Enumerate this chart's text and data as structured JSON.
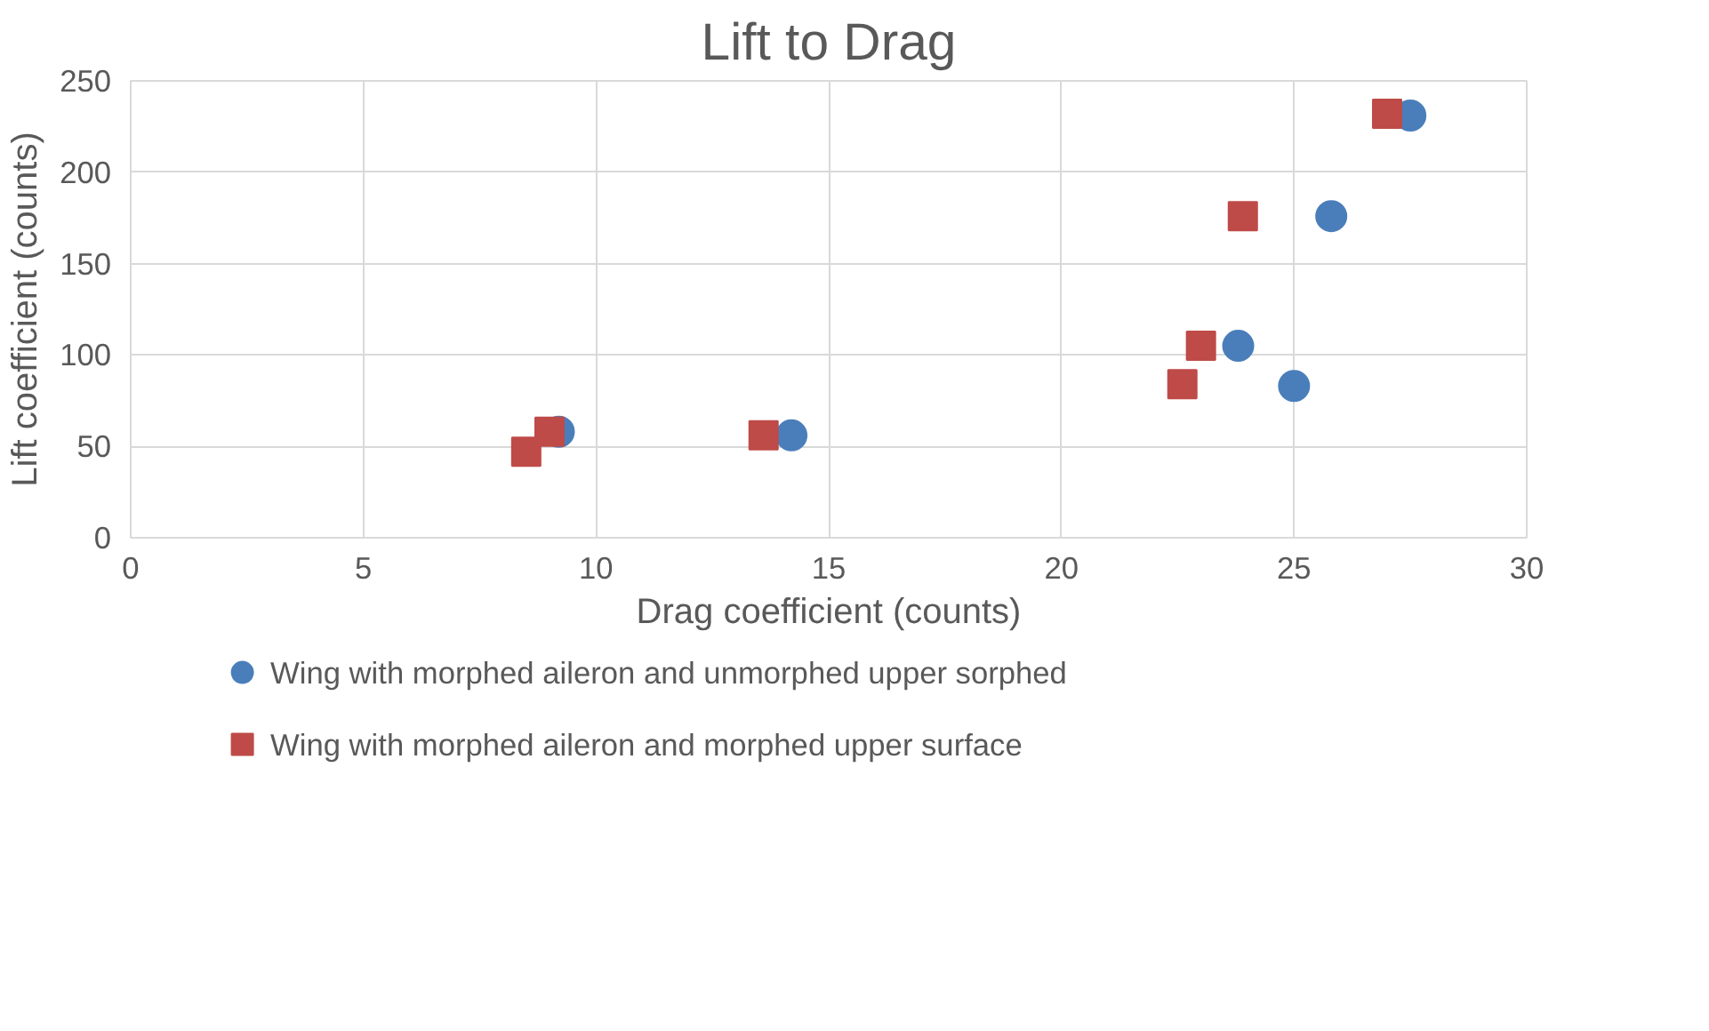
{
  "chart_data": {
    "type": "scatter",
    "title": "Lift to Drag",
    "xlabel": "Drag coefficient (counts)",
    "ylabel": "Lift coefficient (counts)",
    "xlim": [
      0,
      30
    ],
    "xticks": [
      0,
      5,
      10,
      15,
      20,
      25,
      30
    ],
    "ylim": [
      0,
      250
    ],
    "yticks": [
      0,
      50,
      100,
      150,
      200,
      250
    ],
    "grid": true,
    "legend": "bottom",
    "series": [
      {
        "name": "Wing with morphed aileron and unmorphed upper sorphed",
        "color": "#4a7ebb",
        "marker": "circle",
        "x": [
          9.2,
          14.2,
          23.8,
          25.0,
          25.8,
          27.5
        ],
        "values": [
          58,
          56,
          105,
          83,
          176,
          231
        ]
      },
      {
        "name": "Wing with morphed aileron and morphed upper surface",
        "color": "#be4b48",
        "marker": "square",
        "x": [
          8.5,
          9.0,
          13.6,
          22.6,
          23.0,
          23.9,
          27.0
        ],
        "values": [
          47,
          58,
          56,
          84,
          105,
          176,
          232
        ]
      }
    ]
  }
}
